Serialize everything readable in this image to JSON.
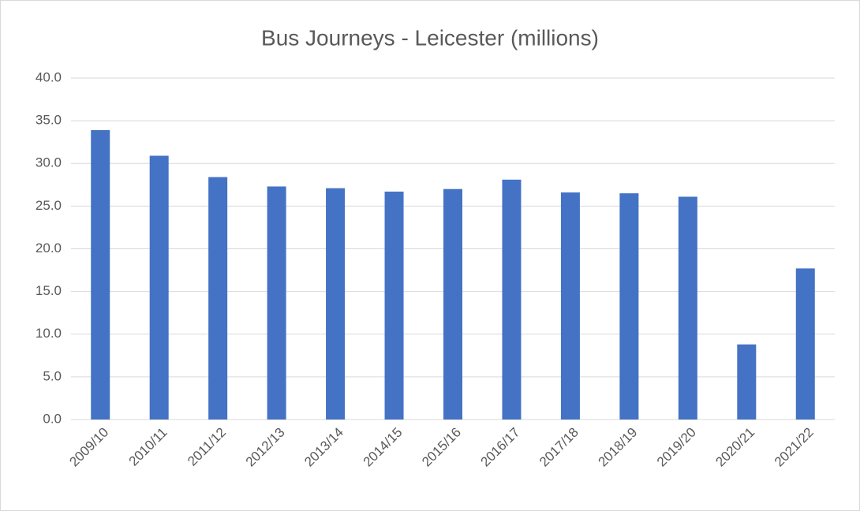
{
  "chart_data": {
    "type": "bar",
    "title": "Bus Journeys - Leicester (millions)",
    "categories": [
      "2009/10",
      "2010/11",
      "2011/12",
      "2012/13",
      "2013/14",
      "2014/15",
      "2015/16",
      "2016/17",
      "2017/18",
      "2018/19",
      "2019/20",
      "2020/21",
      "2021/22"
    ],
    "values": [
      33.9,
      30.9,
      28.4,
      27.3,
      27.1,
      26.7,
      27.0,
      28.1,
      26.6,
      26.5,
      26.1,
      8.8,
      17.7
    ],
    "color": "#4472c4",
    "ylim": [
      0,
      40
    ],
    "yticks": [
      {
        "value": 0,
        "label": "0.0"
      },
      {
        "value": 5,
        "label": "5.0"
      },
      {
        "value": 10,
        "label": "10.0"
      },
      {
        "value": 15,
        "label": "15.0"
      },
      {
        "value": 20,
        "label": "20.0"
      },
      {
        "value": 25,
        "label": "25.0"
      },
      {
        "value": 30,
        "label": "30.0"
      },
      {
        "value": 35,
        "label": "35.0"
      },
      {
        "value": 40,
        "label": "40.0"
      }
    ],
    "grid": true
  }
}
